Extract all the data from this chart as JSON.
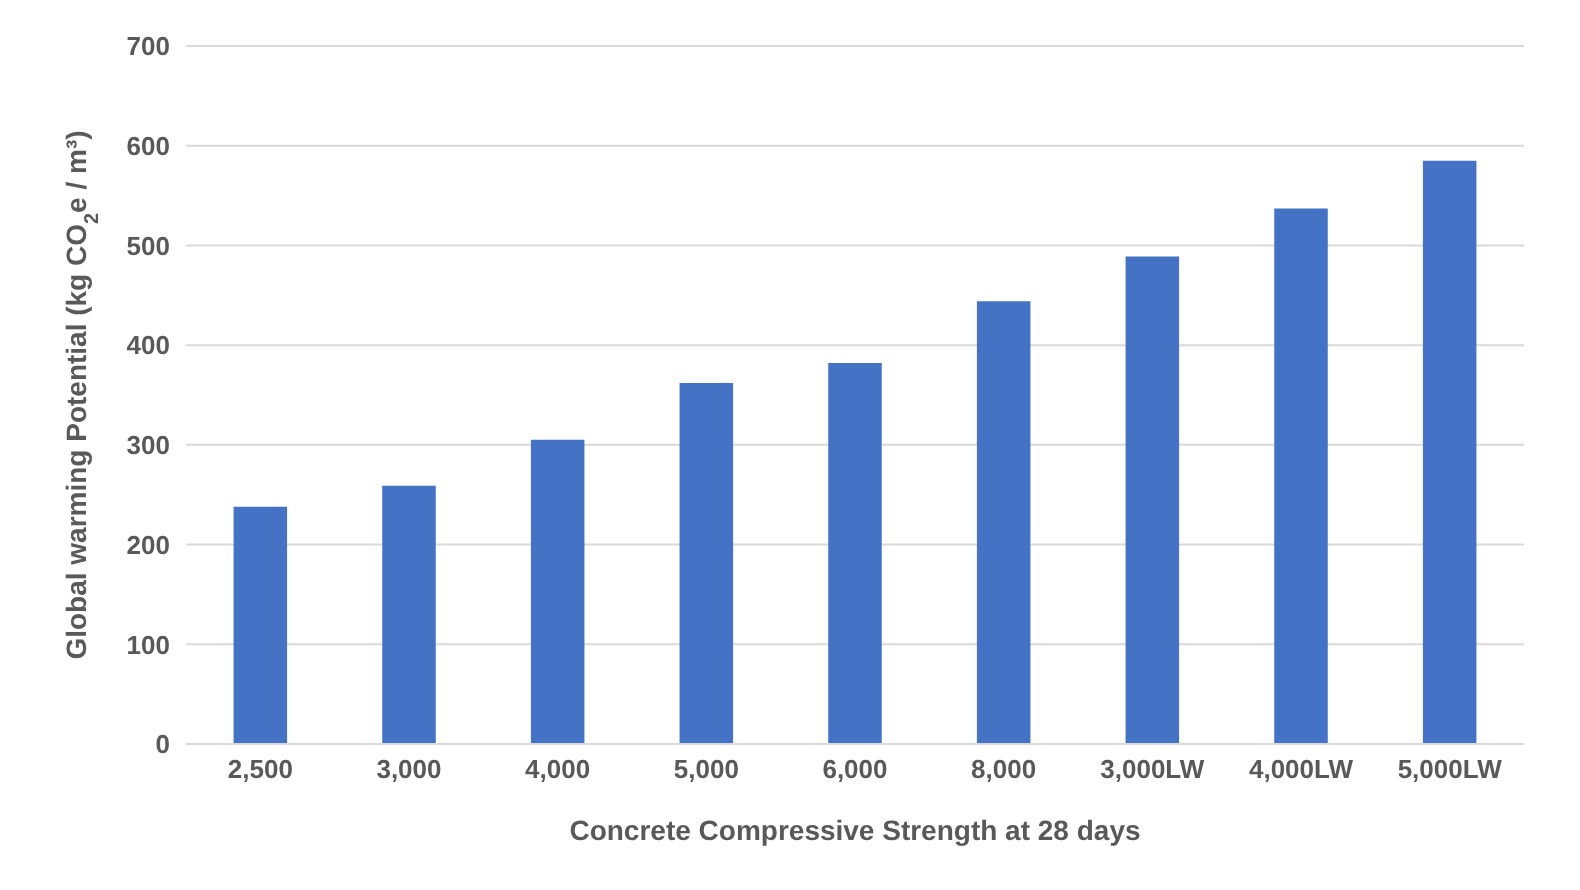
{
  "chart_data": {
    "type": "bar",
    "xlabel": "Concrete Compressive Strength at 28 days",
    "ylabel": "Global warming Potential (kg CO$_{2}$e / m³)",
    "categories": [
      "2,500",
      "3,000",
      "4,000",
      "5,000",
      "6,000",
      "8,000",
      "3,000LW",
      "4,000LW",
      "5,000LW"
    ],
    "values": [
      238,
      259,
      305,
      362,
      382,
      444,
      489,
      537,
      585
    ],
    "color": "#4472c4",
    "ylim": [
      0,
      700
    ],
    "yticks": [
      0,
      100,
      200,
      300,
      400,
      500,
      600,
      700
    ],
    "grid": "y"
  }
}
